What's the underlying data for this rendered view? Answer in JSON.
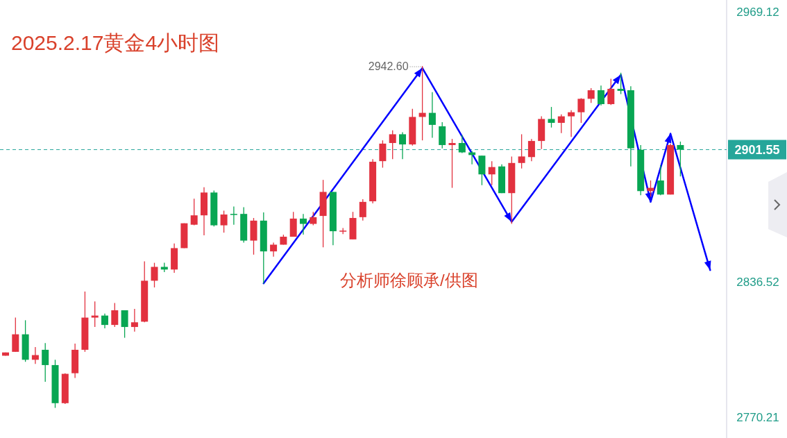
{
  "chart_data": {
    "type": "candlestick",
    "title": "2025.2.17黄金4小时图",
    "annotations": [
      "分析师徐顾承/供图",
      "2942.60"
    ],
    "categories": [
      null,
      null,
      null,
      null,
      null,
      null,
      null,
      null,
      null,
      null,
      null,
      null,
      null,
      null,
      null,
      null,
      null,
      null,
      null,
      null,
      null,
      null,
      null,
      null,
      null,
      null,
      null,
      null,
      null,
      null,
      null,
      null,
      null,
      null,
      null,
      null,
      null,
      null,
      null,
      null,
      null,
      null,
      null,
      null,
      null,
      null,
      null,
      null,
      null,
      null,
      null,
      null,
      null,
      null,
      null,
      null,
      null,
      null,
      null,
      null,
      null,
      null,
      null,
      null,
      null,
      null,
      null,
      null,
      null,
      null,
      null,
      null,
      null
    ],
    "ohlc": [
      [
        2800.4,
        2802.0,
        2800.4,
        2802.0
      ],
      [
        2802.3,
        2819.1,
        2802.3,
        2810.9
      ],
      [
        2810.9,
        2817.8,
        2797.4,
        2798.4
      ],
      [
        2798.4,
        2804.6,
        2796.4,
        2800.7
      ],
      [
        2803.3,
        2806.6,
        2787.6,
        2795.8
      ],
      [
        2795.8,
        2798.4,
        2774.8,
        2777.1
      ],
      [
        2777.1,
        2791.8,
        2776.7,
        2791.5
      ],
      [
        2791.8,
        2806.3,
        2789.5,
        2803.3
      ],
      [
        2803.3,
        2831.9,
        2802.3,
        2819.1
      ],
      [
        2819.1,
        2827.0,
        2814.5,
        2820.1
      ],
      [
        2820.1,
        2821.1,
        2813.8,
        2815.5
      ],
      [
        2815.5,
        2826.3,
        2814.5,
        2822.7
      ],
      [
        2822.7,
        2822.7,
        2809.2,
        2814.5
      ],
      [
        2814.5,
        2823.4,
        2812.2,
        2816.8
      ],
      [
        2817.1,
        2846.7,
        2816.8,
        2837.2
      ],
      [
        2837.2,
        2846.0,
        2833.9,
        2844.0
      ],
      [
        2844.0,
        2846.0,
        2841.4,
        2842.7
      ],
      [
        2842.7,
        2855.5,
        2841.1,
        2853.2
      ],
      [
        2853.2,
        2865.4,
        2853.2,
        2865.4
      ],
      [
        2864.7,
        2877.5,
        2864.4,
        2869.3
      ],
      [
        2869.3,
        2883.1,
        2859.5,
        2880.5
      ],
      [
        2880.5,
        2881.5,
        2863.8,
        2864.4
      ],
      [
        2864.4,
        2871.6,
        2860.8,
        2869.7
      ],
      [
        2870.0,
        2873.6,
        2864.7,
        2869.7
      ],
      [
        2870.0,
        2873.3,
        2855.9,
        2856.9
      ],
      [
        2856.9,
        2868.0,
        2850.0,
        2866.7
      ],
      [
        2866.7,
        2870.7,
        2835.8,
        2851.6
      ],
      [
        2851.6,
        2855.9,
        2849.0,
        2854.9
      ],
      [
        2854.9,
        2859.8,
        2854.9,
        2858.8
      ],
      [
        2858.8,
        2871.0,
        2858.8,
        2867.7
      ],
      [
        2867.7,
        2870.0,
        2859.8,
        2865.1
      ],
      [
        2865.1,
        2871.0,
        2864.4,
        2868.4
      ],
      [
        2869.0,
        2886.7,
        2853.6,
        2880.8
      ],
      [
        2880.8,
        2880.8,
        2854.6,
        2861.5
      ],
      [
        2861.5,
        2863.1,
        2860.1,
        2861.8
      ],
      [
        2857.5,
        2871.0,
        2857.5,
        2868.0
      ],
      [
        2868.4,
        2877.2,
        2866.7,
        2875.9
      ],
      [
        2876.2,
        2896.9,
        2875.2,
        2895.6
      ],
      [
        2895.9,
        2906.1,
        2892.7,
        2904.5
      ],
      [
        2904.8,
        2911.0,
        2896.9,
        2909.1
      ],
      [
        2909.1,
        2910.1,
        2896.9,
        2904.1
      ],
      [
        2904.1,
        2921.6,
        2903.5,
        2917.6
      ],
      [
        2917.6,
        2942.6,
        2906.1,
        2919.6
      ],
      [
        2919.6,
        2929.8,
        2907.4,
        2913.7
      ],
      [
        2913.0,
        2915.0,
        2902.2,
        2903.8
      ],
      [
        2903.8,
        2906.8,
        2882.8,
        2904.8
      ],
      [
        2904.8,
        2908.7,
        2899.9,
        2900.2
      ],
      [
        2900.2,
        2900.9,
        2894.3,
        2898.9
      ],
      [
        2898.6,
        2898.6,
        2884.1,
        2889.4
      ],
      [
        2889.4,
        2895.9,
        2884.1,
        2893.0
      ],
      [
        2893.3,
        2894.3,
        2880.2,
        2880.2
      ],
      [
        2880.2,
        2898.2,
        2865.1,
        2895.0
      ],
      [
        2895.0,
        2909.1,
        2892.3,
        2898.2
      ],
      [
        2897.9,
        2906.8,
        2895.9,
        2905.8
      ],
      [
        2905.8,
        2917.9,
        2901.8,
        2916.6
      ],
      [
        2916.6,
        2922.5,
        2912.4,
        2914.7
      ],
      [
        2914.7,
        2918.9,
        2909.7,
        2917.9
      ],
      [
        2917.9,
        2920.9,
        2907.8,
        2919.9
      ],
      [
        2919.9,
        2926.8,
        2914.7,
        2926.5
      ],
      [
        2926.5,
        2931.7,
        2924.5,
        2930.7
      ],
      [
        2930.7,
        2933.0,
        2923.2,
        2923.9
      ],
      [
        2923.9,
        2936.3,
        2923.5,
        2931.4
      ],
      [
        2931.4,
        2939.3,
        2928.8,
        2930.4
      ],
      [
        2930.7,
        2932.7,
        2893.3,
        2902.2
      ],
      [
        2901.5,
        2903.8,
        2879.2,
        2881.2
      ],
      [
        2881.2,
        2886.4,
        2878.5,
        2882.8
      ],
      [
        2886.4,
        2894.0,
        2879.2,
        2879.5
      ],
      [
        2879.5,
        2904.5,
        2879.5,
        2903.8
      ],
      [
        2903.8,
        2905.5,
        2888.4,
        2901.55
      ],
      null,
      null,
      null,
      null
    ],
    "colors": [
      "#e2313f",
      "#e2313f",
      "#08a653",
      "#e2313f",
      "#08a653",
      "#08a653",
      "#e2313f",
      "#e2313f",
      "#e2313f",
      "#e2313f",
      "#08a653",
      "#e2313f",
      "#08a653",
      "#e2313f",
      "#e2313f",
      "#e2313f",
      "#08a653",
      "#e2313f",
      "#e2313f",
      "#e2313f",
      "#e2313f",
      "#08a653",
      "#e2313f",
      "#08a653",
      "#08a653",
      "#e2313f",
      "#08a653",
      "#e2313f",
      "#e2313f",
      "#e2313f",
      "#08a653",
      "#e2313f",
      "#e2313f",
      "#08a653",
      "#e2313f",
      "#e2313f",
      "#e2313f",
      "#e2313f",
      "#e2313f",
      "#e2313f",
      "#08a653",
      "#e2313f",
      "#e2313f",
      "#08a653",
      "#08a653",
      "#e2313f",
      "#08a653",
      "#08a653",
      "#08a653",
      "#e2313f",
      "#08a653",
      "#e2313f",
      "#e2313f",
      "#e2313f",
      "#e2313f",
      "#08a653",
      "#e2313f",
      "#e2313f",
      "#e2313f",
      "#e2313f",
      "#08a653",
      "#e2313f",
      "#08a653",
      "#08a653",
      "#08a653",
      "#e2313f",
      "#08a653",
      "#e2313f",
      "#08a653",
      null,
      null,
      null,
      null
    ],
    "series": [
      {
        "type": "line",
        "color": "#0000ff",
        "values": [
          null,
          null,
          null,
          null,
          null,
          null,
          null,
          null,
          null,
          null,
          null,
          null,
          null,
          null,
          null,
          null,
          null,
          null,
          null,
          null,
          null,
          null,
          null,
          null,
          null,
          null,
          2835.9,
          null,
          null,
          null,
          null,
          null,
          null,
          null,
          null,
          null,
          null,
          null,
          null,
          null,
          null,
          null,
          2941.6,
          null,
          null,
          null,
          null,
          null,
          null,
          null,
          null,
          2866.1,
          null,
          null,
          null,
          null,
          null,
          null,
          null,
          null,
          null,
          null,
          2938.3,
          null,
          null,
          2875.9,
          null,
          2909.4,
          null,
          null,
          null,
          2842.4,
          null
        ]
      }
    ],
    "ylim": [
      2760,
      2975
    ],
    "yticks": [
      2969.12,
      2836.52,
      2770.21
    ],
    "tick_labels": "y",
    "ref_lines": [
      {
        "axis": "y",
        "value": 2901.55,
        "label": "2901.55",
        "color": "#26a69a",
        "line_style": "dashed"
      }
    ]
  }
}
